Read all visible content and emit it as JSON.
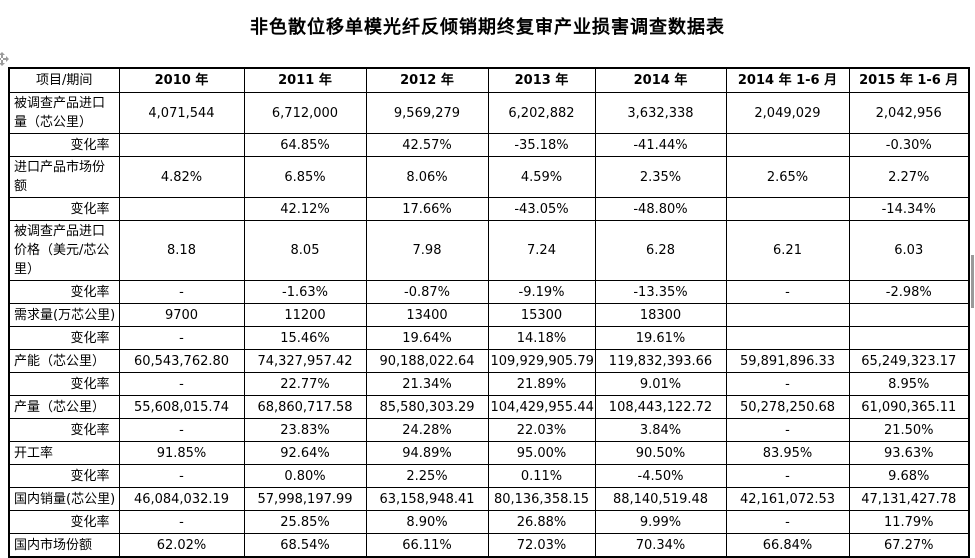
{
  "title": "非色散位移单模光纤反倾销期终复审产业损害调查数据表",
  "icons": {
    "move_handle": "table-move-handle",
    "scrollbar": "vertical-scrollbar-thumb"
  },
  "table": {
    "columns": [
      "项目/期间",
      "2010 年",
      "2011 年",
      "2012 年",
      "2013 年",
      "2014 年",
      "2014 年 1-6 月",
      "2015 年 1-6 月"
    ],
    "rows": [
      {
        "label": "被调查产品进口量（芯公里）",
        "type": "metric",
        "values": [
          "4,071,544",
          "6,712,000",
          "9,569,279",
          "6,202,882",
          "3,632,338",
          "2,049,029",
          "2,042,956"
        ]
      },
      {
        "label": "变化率",
        "type": "change",
        "values": [
          "",
          "64.85%",
          "42.57%",
          "-35.18%",
          "-41.44%",
          "",
          "-0.30%"
        ]
      },
      {
        "label": "进口产品市场份额",
        "type": "metric",
        "values": [
          "4.82%",
          "6.85%",
          "8.06%",
          "4.59%",
          "2.35%",
          "2.65%",
          "2.27%"
        ]
      },
      {
        "label": "变化率",
        "type": "change",
        "values": [
          "",
          "42.12%",
          "17.66%",
          "-43.05%",
          "-48.80%",
          "",
          "-14.34%"
        ]
      },
      {
        "label": "被调查产品进口价格（美元/芯公里）",
        "type": "metric",
        "values": [
          "8.18",
          "8.05",
          "7.98",
          "7.24",
          "6.28",
          "6.21",
          "6.03"
        ]
      },
      {
        "label": "变化率",
        "type": "change",
        "values": [
          "-",
          "-1.63%",
          "-0.87%",
          "-9.19%",
          "-13.35%",
          "-",
          "-2.98%"
        ]
      },
      {
        "label": "需求量(万芯公里)",
        "type": "metric",
        "values": [
          "9700",
          "11200",
          "13400",
          "15300",
          "18300",
          "",
          ""
        ]
      },
      {
        "label": "变化率",
        "type": "change",
        "values": [
          "-",
          "15.46%",
          "19.64%",
          "14.18%",
          "19.61%",
          "",
          ""
        ]
      },
      {
        "label": "产能（芯公里）",
        "type": "metric",
        "values": [
          "60,543,762.80",
          "74,327,957.42",
          "90,188,022.64",
          "109,929,905.79",
          "119,832,393.66",
          "59,891,896.33",
          "65,249,323.17"
        ]
      },
      {
        "label": "变化率",
        "type": "change",
        "values": [
          "-",
          "22.77%",
          "21.34%",
          "21.89%",
          "9.01%",
          "-",
          "8.95%"
        ]
      },
      {
        "label": "产量（芯公里）",
        "type": "metric",
        "values": [
          "55,608,015.74",
          "68,860,717.58",
          "85,580,303.29",
          "104,429,955.44",
          "108,443,122.72",
          "50,278,250.68",
          "61,090,365.11"
        ]
      },
      {
        "label": "变化率",
        "type": "change",
        "values": [
          "-",
          "23.83%",
          "24.28%",
          "22.03%",
          "3.84%",
          "-",
          "21.50%"
        ]
      },
      {
        "label": "开工率",
        "type": "metric",
        "values": [
          "91.85%",
          "92.64%",
          "94.89%",
          "95.00%",
          "90.50%",
          "83.95%",
          "93.63%"
        ]
      },
      {
        "label": "变化率",
        "type": "change",
        "values": [
          "-",
          "0.80%",
          "2.25%",
          "0.11%",
          "-4.50%",
          "-",
          "9.68%"
        ]
      },
      {
        "label": "国内销量(芯公里)",
        "type": "metric",
        "values": [
          "46,084,032.19",
          "57,998,197.99",
          "63,158,948.41",
          "80,136,358.15",
          "88,140,519.48",
          "42,161,072.53",
          "47,131,427.78"
        ]
      },
      {
        "label": "变化率",
        "type": "change",
        "values": [
          "-",
          "25.85%",
          "8.90%",
          "26.88%",
          "9.99%",
          "-",
          "11.79%"
        ]
      },
      {
        "label": "国内市场份额",
        "type": "metric",
        "values": [
          "62.02%",
          "68.54%",
          "66.11%",
          "72.03%",
          "70.34%",
          "66.84%",
          "67.27%"
        ]
      }
    ]
  }
}
